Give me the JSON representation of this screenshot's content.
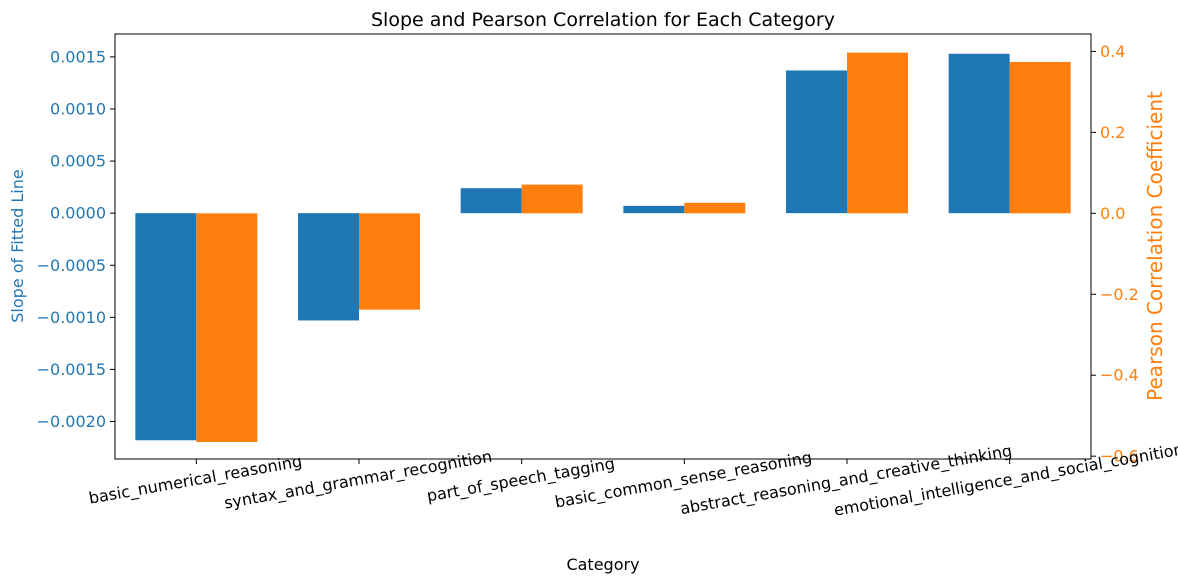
{
  "chart_data": {
    "type": "bar",
    "title": "Slope and Pearson Correlation for Each Category",
    "xlabel": "Category",
    "ylabel_left": "Slope of Fitted Line",
    "ylabel_right": "Pearson Correlation Coefficient",
    "categories": [
      "basic_numerical_reasoning",
      "syntax_and_grammar_recognition",
      "part_of_speech_tagging",
      "basic_common_sense_reasoning",
      "abstract_reasoning_and_creative_thinking",
      "emotional_intelligence_and_social_cognition"
    ],
    "series": [
      {
        "axis": "left",
        "color": "#1f77b4",
        "values": [
          -0.00218,
          -0.00103,
          0.00024,
          7e-05,
          0.00137,
          0.00153
        ]
      },
      {
        "axis": "right",
        "color": "#ff7f0e",
        "values": [
          -0.565,
          -0.238,
          0.071,
          0.026,
          0.397,
          0.374
        ]
      }
    ],
    "ylim_left": [
      -0.00236,
      0.00172
    ],
    "ylim_right": [
      -0.607,
      0.443
    ],
    "yticks_left": [
      "0.0015",
      "0.0010",
      "0.0005",
      "0.0000",
      "−0.0005",
      "−0.0010",
      "−0.0015",
      "−0.0020"
    ],
    "yticks_left_values": [
      0.0015,
      0.001,
      0.0005,
      0.0,
      -0.0005,
      -0.001,
      -0.0015,
      -0.002
    ],
    "yticks_right": [
      "0.4",
      "0.2",
      "0.0",
      "−0.2",
      "−0.4",
      "−0.6"
    ],
    "yticks_right_values": [
      0.4,
      0.2,
      0.0,
      -0.2,
      -0.4,
      -0.6
    ],
    "xtick_rotation_deg": -10,
    "grid": false,
    "left_axis_color": "#1f77b4",
    "right_axis_color": "#ff7f0e"
  }
}
